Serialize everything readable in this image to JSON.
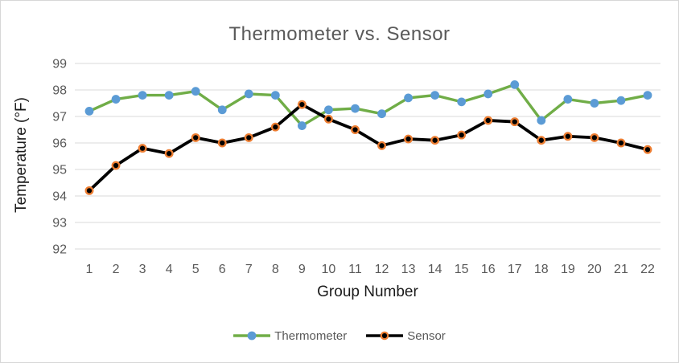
{
  "window": {
    "background": "#FFFFFF",
    "border_color": "#D7D7D7"
  },
  "chart_data": {
    "type": "line",
    "title": "Thermometer vs. Sensor",
    "xlabel": "Group Number",
    "ylabel": "Temperature (°F)",
    "categories": [
      "1",
      "2",
      "3",
      "4",
      "5",
      "6",
      "7",
      "8",
      "9",
      "10",
      "11",
      "12",
      "13",
      "14",
      "15",
      "16",
      "17",
      "18",
      "19",
      "20",
      "21",
      "22"
    ],
    "ylim": [
      92,
      99
    ],
    "yticks": [
      "99",
      "98",
      "97",
      "96",
      "95",
      "94",
      "93",
      "92"
    ],
    "grid": true,
    "grid_color": "#D9D9D9",
    "legend_position": "bottom",
    "text_colors": {
      "title": "#595959",
      "ticks": "#595959",
      "axis_labels": "#1a1a1a",
      "legend": "#595959"
    },
    "series": [
      {
        "name": "Thermometer",
        "line_color": "#70AD47",
        "marker_color": "#5B9BD5",
        "marker_outline": "none",
        "values": [
          97.2,
          97.65,
          97.8,
          97.8,
          97.95,
          97.25,
          97.85,
          97.8,
          96.65,
          97.25,
          97.3,
          97.1,
          97.7,
          97.8,
          97.55,
          97.85,
          98.2,
          96.85,
          97.65,
          97.5,
          97.6,
          97.8
        ]
      },
      {
        "name": "Sensor",
        "line_color": "#000000",
        "marker_color": "#000000",
        "marker_outline": "#ED7D31",
        "values": [
          94.2,
          95.15,
          95.8,
          95.6,
          96.2,
          96.0,
          96.2,
          96.6,
          97.45,
          96.9,
          96.5,
          95.9,
          96.15,
          96.1,
          96.3,
          96.85,
          96.8,
          96.1,
          96.25,
          96.2,
          96.0,
          95.75
        ]
      }
    ]
  }
}
